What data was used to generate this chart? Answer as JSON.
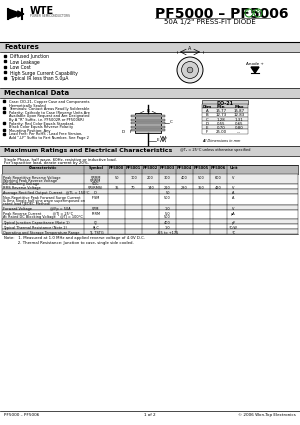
{
  "title": "PF5000 – PF5006",
  "subtitle": "50A 1/2\" PRESS-FIT DIODE",
  "company": "WTE",
  "company_sub": "POWER SEMICONDUCTORS",
  "features_title": "Features",
  "features": [
    "Diffused Junction",
    "Low Leakage",
    "Low Cost",
    "High Surge Current Capability",
    "Typical IR less than 5.0μA"
  ],
  "mech_title": "Mechanical Data",
  "mech_items": [
    "Case: DO-21, Copper Case and Components Hermetically Sealed",
    "Terminals: Contact Areas Readily Solderable",
    "Polarity: Cathode to Case (Reverse Units Are Available Upon Request and Are Designated By A \"R\" Suffix, i.e. PF5002R or PF5006R)",
    "Polarity: Red Color Equals Standard, Black Color Equals Reverse Polarity",
    "Mounting Position: Any",
    "Lead Free: Per RoHS ; Lead Free Version, Add \"-LF\" Suffix to Part Number, See Page 2"
  ],
  "max_ratings_title": "Maximum Ratings and Electrical Characteristics",
  "max_ratings_note": "@Tₐ = 25°C unless otherwise specified",
  "single_phase_note": "Single Phase, half wave, 60Hz, resistive or inductive load.",
  "cap_load_note": "For capacitive load, derate current by 20%.",
  "table_headers": [
    "Characteristic",
    "Symbol",
    "PF5000",
    "PF5001",
    "PF5002",
    "PF5003",
    "PF5004",
    "PF5005",
    "PF5006",
    "Unit"
  ],
  "table_rows": [
    {
      "char": "Peak Repetitive Reverse Voltage\nWorking Peak Reverse Voltage\nDC Blocking Voltage",
      "symbol": "VRRM\nVRWM\nVDC",
      "values": [
        "50",
        "100",
        "200",
        "300",
        "400",
        "500",
        "600"
      ],
      "unit": "V",
      "merged": false
    },
    {
      "char": "RMS Reverse Voltage",
      "symbol": "VR(RMS)",
      "values": [
        "35",
        "70",
        "140",
        "210",
        "280",
        "350",
        "420"
      ],
      "unit": "V",
      "merged": false
    },
    {
      "char": "Average Rectified Output Current   @TL = 150°C",
      "symbol": "IO",
      "values": [
        "50"
      ],
      "unit": "A",
      "merged": true
    },
    {
      "char": "Non-Repetitive Peak Forward Surge Current\n& 8ms Single half sine wave superimposed on\nrated load (JEDEC Method)",
      "symbol": "IFSM",
      "values": [
        "500"
      ],
      "unit": "A",
      "merged": true
    },
    {
      "char": "Forward Voltage                @IFp = 50A",
      "symbol": "VFM",
      "values": [
        "1.0"
      ],
      "unit": "V",
      "merged": true
    },
    {
      "char": "Peak Reverse Current          @TJ = 25°C\nAt Rated DC Blocking Voltage    @TJ = 100°C",
      "symbol": "IRRM",
      "values": [
        "5.0\n500"
      ],
      "unit": "μA",
      "merged": true
    },
    {
      "char": "Typical Junction Capacitance (Note 1)",
      "symbol": "CJ",
      "values": [
        "400"
      ],
      "unit": "pF",
      "merged": true
    },
    {
      "char": "Typical Thermal Resistance (Note 2)",
      "symbol": "θJ-C",
      "values": [
        "1.0"
      ],
      "unit": "°C/W",
      "merged": true
    },
    {
      "char": "Operating and Storage Temperature Range",
      "symbol": "TJ, TSTG",
      "values": [
        "-65 to +175"
      ],
      "unit": "°C",
      "merged": true
    }
  ],
  "notes": [
    "Note:   1. Measured at 1.0 MHz and applied reverse voltage of 4.0V D.C.",
    "           2. Thermal Resistance: Junction to case, single side cooled."
  ],
  "footer_left": "PF5000 – PF5006",
  "footer_center": "1 of 2",
  "footer_right": "© 2006 Won-Top Electronics",
  "do21_table": {
    "title": "DO-21",
    "headers": [
      "Dim",
      "Min",
      "Max"
    ],
    "rows": [
      [
        "A",
        "15.77",
        "15.87"
      ],
      [
        "B",
        "12.73",
        "12.83"
      ],
      [
        "C",
        "1.28",
        "1.31"
      ],
      [
        "D",
        "0.55",
        "0.65"
      ],
      [
        "E",
        "0.70",
        "0.80"
      ],
      [
        "F",
        "25.00",
        "---"
      ]
    ],
    "note": "All Dimensions in mm"
  },
  "bg_color": "#ffffff",
  "green_color": "#228B22",
  "section_bar_color": "#d0d0d0",
  "table_header_bg": "#b8b8b8",
  "row_alt_bg": "#ececec",
  "border_color": "#000000"
}
